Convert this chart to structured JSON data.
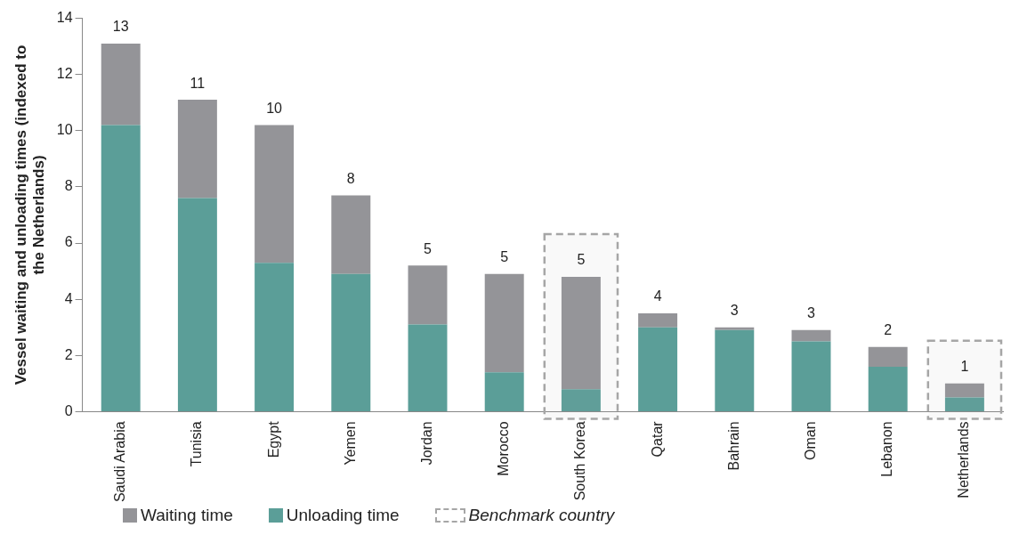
{
  "chart_data": {
    "type": "bar",
    "stacked": true,
    "ylabel": "Vessel waiting and unloading times (indexed to the Netherlands)",
    "categories": [
      "Saudi Arabia",
      "Tunisia",
      "Egypt",
      "Yemen",
      "Jordan",
      "Morocco",
      "South Korea",
      "Qatar",
      "Bahrain",
      "Oman",
      "Lebanon",
      "Netherlands"
    ],
    "series": [
      {
        "name": "Unloading time",
        "color": "#5b9e98",
        "values": [
          10.2,
          7.6,
          5.3,
          4.9,
          3.1,
          1.4,
          0.8,
          3.0,
          2.9,
          2.5,
          1.6,
          0.5
        ]
      },
      {
        "name": "Waiting time",
        "color": "#949498",
        "values": [
          2.9,
          3.5,
          4.9,
          2.8,
          2.1,
          3.5,
          4.0,
          0.5,
          0.1,
          0.4,
          0.7,
          0.5
        ]
      }
    ],
    "totals": [
      "13",
      "11",
      "10",
      "8",
      "5",
      "5",
      "5",
      "4",
      "3",
      "3",
      "2",
      "1"
    ],
    "bands": [
      {
        "axis": "x",
        "from": "South Korea",
        "to": "South Korea",
        "label": "Benchmark country",
        "color": "#a6a6a6"
      },
      {
        "axis": "x",
        "from": "Netherlands",
        "to": "Netherlands",
        "color": "#a6a6a6"
      }
    ],
    "ylim": [
      0,
      14
    ],
    "yticks": [
      0,
      2,
      4,
      6,
      8,
      10,
      12,
      14
    ],
    "grid": false,
    "legend": "bottom"
  }
}
